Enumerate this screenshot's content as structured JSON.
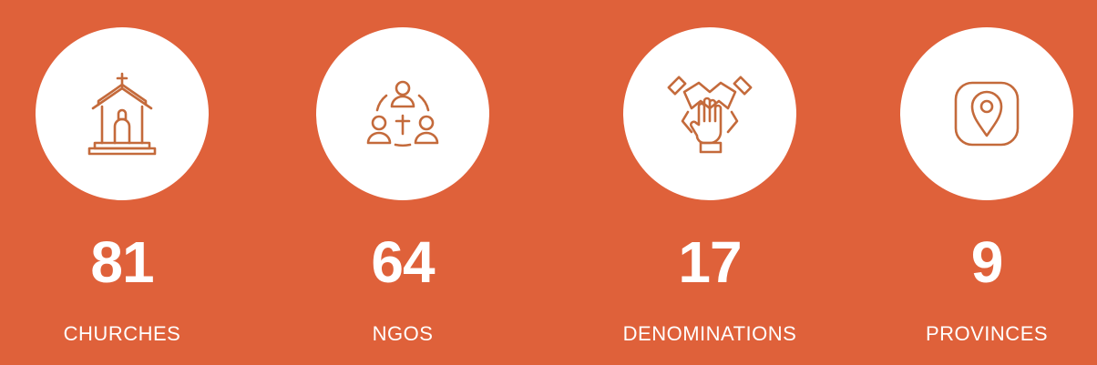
{
  "colors": {
    "background": "#DF613A",
    "circle": "#FFFFFF",
    "icon": "#C46A3B",
    "text": "#FFFFFF"
  },
  "stats": [
    {
      "icon": "church-icon",
      "value": "81",
      "label": "CHURCHES"
    },
    {
      "icon": "community-cross-icon",
      "value": "64",
      "label": "NGOS"
    },
    {
      "icon": "joined-hands-icon",
      "value": "17",
      "label": "DENOMINATIONS"
    },
    {
      "icon": "location-pin-icon",
      "value": "9",
      "label": "PROVINCES"
    }
  ]
}
